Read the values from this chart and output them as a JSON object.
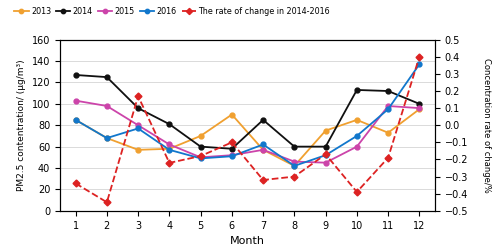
{
  "months": [
    1,
    2,
    3,
    4,
    5,
    6,
    7,
    8,
    9,
    10,
    11,
    12
  ],
  "data_2013": [
    85,
    68,
    57,
    58,
    70,
    90,
    57,
    42,
    75,
    85,
    73,
    95
  ],
  "data_2014": [
    127,
    125,
    96,
    81,
    60,
    58,
    85,
    60,
    60,
    113,
    112,
    100
  ],
  "data_2015": [
    103,
    98,
    80,
    62,
    50,
    52,
    57,
    46,
    45,
    60,
    98,
    96
  ],
  "data_2016": [
    85,
    68,
    77,
    57,
    49,
    51,
    62,
    42,
    52,
    70,
    95,
    137
  ],
  "rate_raw": [
    -0.34,
    -0.45,
    0.17,
    -0.22,
    -0.18,
    -0.1,
    -0.32,
    -0.3,
    -0.17,
    -0.39,
    -0.19,
    0.4
  ],
  "color_2013": "#f0a030",
  "color_2014": "#101010",
  "color_2015": "#cc44aa",
  "color_2016": "#1177cc",
  "color_rate": "#dd2222",
  "ylabel_left": "PM2.5 contentration/ (μg/m³)",
  "ylabel_right": "Concentration rate of change/%",
  "xlabel": "Month",
  "ylim_left": [
    0,
    160
  ],
  "ylim_right": [
    -0.5,
    0.5
  ],
  "yticks_left": [
    0,
    20,
    40,
    60,
    80,
    100,
    120,
    140,
    160
  ],
  "yticks_right": [
    -0.5,
    -0.4,
    -0.3,
    -0.2,
    -0.1,
    0,
    0.1,
    0.2,
    0.3,
    0.4,
    0.5
  ],
  "legend_labels": [
    "2013",
    "2014",
    "2015",
    "2016",
    "The rate of change in 2014-2016"
  ]
}
